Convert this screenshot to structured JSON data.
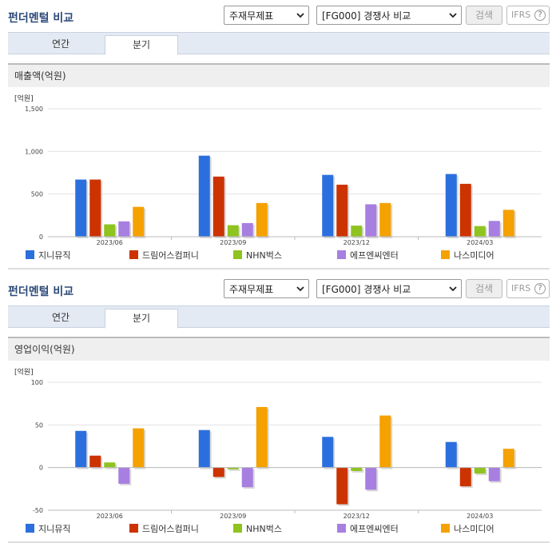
{
  "sections": [
    {
      "header": {
        "title": "펀더멘털 비교",
        "select_type": "주재무제표",
        "select_compare": "[FG000] 경쟁사 비교",
        "search_label": "검색",
        "ifrs_label": "IFRS",
        "help_label": "?"
      },
      "tabs": [
        {
          "label": "연간",
          "active": false
        },
        {
          "label": "분기",
          "active": true
        }
      ],
      "subtitle": "매출액(억원)"
    },
    {
      "header": {
        "title": "펀더멘털 비교",
        "select_type": "주재무제표",
        "select_compare": "[FG000] 경쟁사 비교",
        "search_label": "검색",
        "ifrs_label": "IFRS",
        "help_label": "?"
      },
      "tabs": [
        {
          "label": "연간",
          "active": false
        },
        {
          "label": "분기",
          "active": true
        }
      ],
      "subtitle": "영업이익(억원)"
    }
  ],
  "legend": [
    {
      "name": "지니뮤직",
      "color": "#2b6fde"
    },
    {
      "name": "드림어스컴퍼니",
      "color": "#cc3300"
    },
    {
      "name": "NHN벅스",
      "color": "#8fc31f"
    },
    {
      "name": "에프엔씨엔터",
      "color": "#a77fe0"
    },
    {
      "name": "나스미디어",
      "color": "#f5a100"
    }
  ],
  "chart_data": [
    {
      "type": "bar",
      "unit_label": "[억원]",
      "categories": [
        "2023/06",
        "2023/09",
        "2023/12",
        "2024/03"
      ],
      "ylim": [
        0,
        1500
      ],
      "yticks": [
        0,
        500,
        1000,
        1500
      ],
      "ytick_labels": [
        "0",
        "500",
        "1,000",
        "1,500"
      ],
      "series": [
        {
          "name": "지니뮤직",
          "values": [
            670,
            950,
            725,
            735
          ]
        },
        {
          "name": "드림어스컴퍼니",
          "values": [
            670,
            705,
            610,
            620
          ]
        },
        {
          "name": "NHN벅스",
          "values": [
            145,
            135,
            130,
            125
          ]
        },
        {
          "name": "에프엔씨엔터",
          "values": [
            180,
            160,
            380,
            185
          ]
        },
        {
          "name": "나스미디어",
          "values": [
            350,
            395,
            395,
            315
          ]
        }
      ]
    },
    {
      "type": "bar",
      "unit_label": "[억원]",
      "categories": [
        "2023/06",
        "2023/09",
        "2023/12",
        "2024/03"
      ],
      "ylim": [
        -50,
        100
      ],
      "yticks": [
        -50,
        0,
        50,
        100
      ],
      "ytick_labels": [
        "-50",
        "0",
        "50",
        "100"
      ],
      "series": [
        {
          "name": "지니뮤직",
          "values": [
            43,
            44,
            36,
            30
          ]
        },
        {
          "name": "드림어스컴퍼니",
          "values": [
            14,
            -11,
            -43,
            -22
          ]
        },
        {
          "name": "NHN벅스",
          "values": [
            6,
            -2,
            -4,
            -7
          ]
        },
        {
          "name": "에프엔씨엔터",
          "values": [
            -19,
            -23,
            -26,
            -16
          ]
        },
        {
          "name": "나스미디어",
          "values": [
            46,
            71,
            61,
            22
          ]
        }
      ]
    }
  ]
}
